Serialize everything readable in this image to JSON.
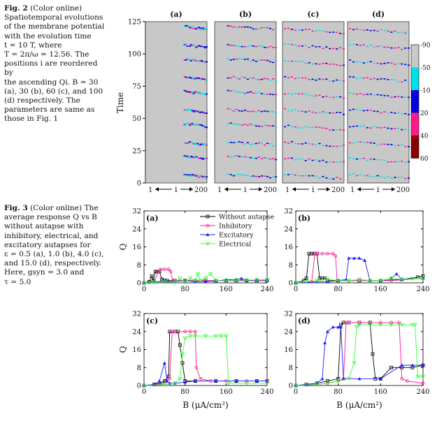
{
  "fig2": {
    "label": "Fig. 2",
    "caption_lines": [
      "(Color online)",
      "Spatiotemporal evolutions",
      "of the membrane potential",
      "with the evolution time",
      "t = 10 T, where",
      "T = 2π/ω = 12.56. The",
      "positions i are reordered by",
      "the ascending Qi. B = 30",
      "(a), 30 (b), 60 (c), and 100",
      "(d) respectively. The",
      "parameters are same as",
      "those in Fig. 1"
    ],
    "panels": [
      "(a)",
      "(b)",
      "(c)",
      "(d)"
    ],
    "ylabel": "Time",
    "yticks": [
      "0",
      "25",
      "50",
      "75",
      "100",
      "125"
    ],
    "x_start": "1",
    "x_mid": "i",
    "x_end": "200",
    "colorbar_labels": [
      "-90",
      "-50",
      "-10",
      "20",
      "40",
      "60"
    ],
    "colorbar_colors": [
      "#c8c8c8",
      "#00e0e8",
      "#0000e0",
      "#ff1a8c",
      "#8b0000"
    ]
  },
  "fig3": {
    "label": "Fig. 3",
    "caption_lines": [
      "(Color online) The",
      "average response Q vs B",
      "without autapse with",
      "inhibitory, electrical, and",
      "excitatory autapses for",
      "ε = 0.5 (a), 1.0 (b), 4.0 (c),",
      "and 15.0 (d), respectively.",
      "Here, gsyn = 3.0 and",
      "τ = 5.0"
    ],
    "ylabel": "Q",
    "xlabel": "B (μA/cm²)",
    "xticks": [
      "0",
      "80",
      "160",
      "240"
    ],
    "yticks": [
      "0",
      "8",
      "16",
      "24",
      "32"
    ],
    "panels": [
      "(a)",
      "(b)",
      "(c)",
      "(d)"
    ],
    "legend": [
      "Without autapse",
      "Inhibitory",
      "Excitatory",
      "Electrical"
    ]
  },
  "chart_data": [
    {
      "type": "line",
      "panel": "(a)",
      "xlim": [
        0,
        240
      ],
      "ylim": [
        0,
        32
      ],
      "xlabel": "",
      "ylabel": "Q",
      "series": [
        {
          "name": "Without autapse",
          "color": "#000000",
          "x": [
            0,
            10,
            15,
            18,
            22,
            25,
            30,
            35,
            40,
            45,
            60,
            80,
            100,
            120,
            140,
            160,
            180,
            200,
            220,
            240
          ],
          "y": [
            0,
            0.5,
            3,
            1,
            5,
            5,
            5,
            1.5,
            1,
            1,
            1,
            1,
            1,
            1,
            1,
            1,
            1,
            1,
            1,
            1
          ]
        },
        {
          "name": "Inhibitory",
          "color": "#ff1493",
          "x": [
            0,
            20,
            28,
            32,
            40,
            48,
            52,
            56,
            60,
            80,
            120,
            160,
            200,
            240
          ],
          "y": [
            0,
            0.5,
            5,
            6,
            6,
            6,
            5,
            1,
            1,
            1,
            1,
            1,
            1,
            1
          ]
        },
        {
          "name": "Excitatory",
          "color": "#1a1aff",
          "x": [
            0,
            20,
            40,
            60,
            80,
            100,
            120,
            140,
            160,
            180,
            190,
            200,
            220,
            240
          ],
          "y": [
            0,
            0.5,
            0.8,
            0.6,
            1,
            0.5,
            0.6,
            0.8,
            1.4,
            1.5,
            2,
            1,
            1.2,
            1.3
          ]
        },
        {
          "name": "Electrical",
          "color": "#33ff33",
          "x": [
            0,
            20,
            40,
            60,
            70,
            80,
            90,
            100,
            105,
            110,
            120,
            130,
            140,
            160,
            180,
            200,
            220,
            240
          ],
          "y": [
            0,
            0.3,
            0.5,
            0.2,
            2,
            0.3,
            2,
            1,
            4,
            1,
            2,
            4,
            1,
            1,
            1.2,
            1.2,
            1.3,
            1.4
          ]
        }
      ]
    },
    {
      "type": "line",
      "panel": "(b)",
      "xlim": [
        0,
        240
      ],
      "ylim": [
        0,
        32
      ],
      "xlabel": "",
      "ylabel": "",
      "series": [
        {
          "name": "Without autapse",
          "color": "#000000",
          "x": [
            0,
            15,
            20,
            25,
            30,
            35,
            40,
            45,
            50,
            55,
            60,
            80,
            120,
            160,
            200,
            230,
            240
          ],
          "y": [
            0,
            1,
            2,
            13,
            13,
            13,
            13,
            2,
            2,
            2,
            1,
            1,
            1,
            1,
            1.5,
            2.5,
            3
          ]
        },
        {
          "name": "Inhibitory",
          "color": "#ff1493",
          "x": [
            0,
            30,
            36,
            40,
            50,
            60,
            70,
            75,
            78,
            80,
            100,
            140,
            180,
            240
          ],
          "y": [
            0,
            0.5,
            13,
            13,
            13,
            13,
            13,
            12,
            1,
            1,
            1,
            1,
            1,
            2
          ]
        },
        {
          "name": "Excitatory",
          "color": "#1a1aff",
          "x": [
            0,
            40,
            60,
            80,
            95,
            100,
            110,
            120,
            130,
            140,
            160,
            180,
            190,
            200,
            240
          ],
          "y": [
            0,
            0.5,
            0.5,
            1,
            1.5,
            11,
            11,
            11,
            10,
            1,
            1,
            2,
            4,
            1.5,
            2
          ]
        },
        {
          "name": "Electrical",
          "color": "#33ff33",
          "x": [
            0,
            20,
            40,
            60,
            80,
            100,
            120,
            140,
            160,
            180,
            200,
            220,
            240
          ],
          "y": [
            0,
            0.5,
            1,
            1.5,
            1,
            1,
            1.5,
            1,
            1,
            2,
            1.5,
            1.8,
            2
          ]
        }
      ]
    },
    {
      "type": "line",
      "panel": "(c)",
      "xlim": [
        0,
        240
      ],
      "ylim": [
        0,
        32
      ],
      "xlabel": "B (μA/cm²)",
      "ylabel": "Q",
      "series": [
        {
          "name": "Without autapse",
          "color": "#000000",
          "x": [
            0,
            20,
            30,
            40,
            48,
            50,
            60,
            66,
            70,
            75,
            80,
            100,
            140,
            180,
            220,
            240
          ],
          "y": [
            0,
            0.5,
            1,
            2,
            4,
            24,
            24,
            24,
            18,
            10,
            2,
            2,
            2,
            2,
            2,
            2
          ]
        },
        {
          "name": "Inhibitory",
          "color": "#ff1493",
          "x": [
            0,
            40,
            50,
            55,
            60,
            80,
            90,
            100,
            102,
            110,
            130,
            160,
            200,
            240
          ],
          "y": [
            0,
            1,
            3,
            24,
            24,
            24,
            24,
            24,
            8,
            3,
            2,
            2,
            2,
            2
          ]
        },
        {
          "name": "Excitatory",
          "color": "#1a1aff",
          "x": [
            0,
            20,
            30,
            40,
            45,
            50,
            60,
            80,
            100,
            140,
            180,
            220,
            240
          ],
          "y": [
            0,
            0.5,
            2,
            10,
            2,
            1,
            1,
            1.5,
            2,
            2,
            2,
            2,
            2
          ]
        },
        {
          "name": "Electrical",
          "color": "#33ff33",
          "x": [
            0,
            40,
            60,
            70,
            75,
            80,
            90,
            100,
            120,
            140,
            150,
            160,
            165,
            200,
            240
          ],
          "y": [
            0,
            0.5,
            1,
            3,
            14,
            21,
            22,
            22,
            22,
            22,
            22,
            22,
            1,
            1,
            1
          ]
        }
      ]
    },
    {
      "type": "line",
      "panel": "(d)",
      "xlim": [
        0,
        240
      ],
      "ylim": [
        0,
        32
      ],
      "xlabel": "B (μA/cm²)",
      "ylabel": "",
      "series": [
        {
          "name": "Without autapse",
          "color": "#000000",
          "x": [
            0,
            20,
            40,
            60,
            80,
            85,
            90,
            100,
            120,
            140,
            145,
            150,
            160,
            180,
            200,
            220,
            240
          ],
          "y": [
            0,
            0.5,
            1,
            2,
            3,
            27,
            28,
            28,
            28,
            28,
            14,
            3,
            3,
            8,
            8,
            8,
            9
          ]
        },
        {
          "name": "Inhibitory",
          "color": "#ff1493",
          "x": [
            0,
            40,
            60,
            80,
            90,
            95,
            100,
            120,
            160,
            180,
            195,
            200,
            210,
            240
          ],
          "y": [
            0,
            0.5,
            1,
            2,
            3,
            28,
            28,
            28,
            28,
            28,
            28,
            3,
            2,
            1
          ]
        },
        {
          "name": "Excitatory",
          "color": "#1a1aff",
          "x": [
            0,
            40,
            50,
            55,
            60,
            70,
            80,
            85,
            90,
            120,
            160,
            200,
            220,
            240
          ],
          "y": [
            0,
            1,
            3,
            19,
            24,
            26,
            26,
            26,
            3,
            3,
            3,
            9,
            9,
            9
          ]
        },
        {
          "name": "Electrical",
          "color": "#33ff33",
          "x": [
            0,
            40,
            60,
            80,
            100,
            110,
            115,
            120,
            140,
            160,
            180,
            200,
            220,
            225,
            230,
            240
          ],
          "y": [
            0,
            0.5,
            1,
            2,
            3,
            10,
            26,
            27,
            27,
            27,
            27,
            27,
            27,
            27,
            4,
            4
          ]
        }
      ]
    }
  ]
}
